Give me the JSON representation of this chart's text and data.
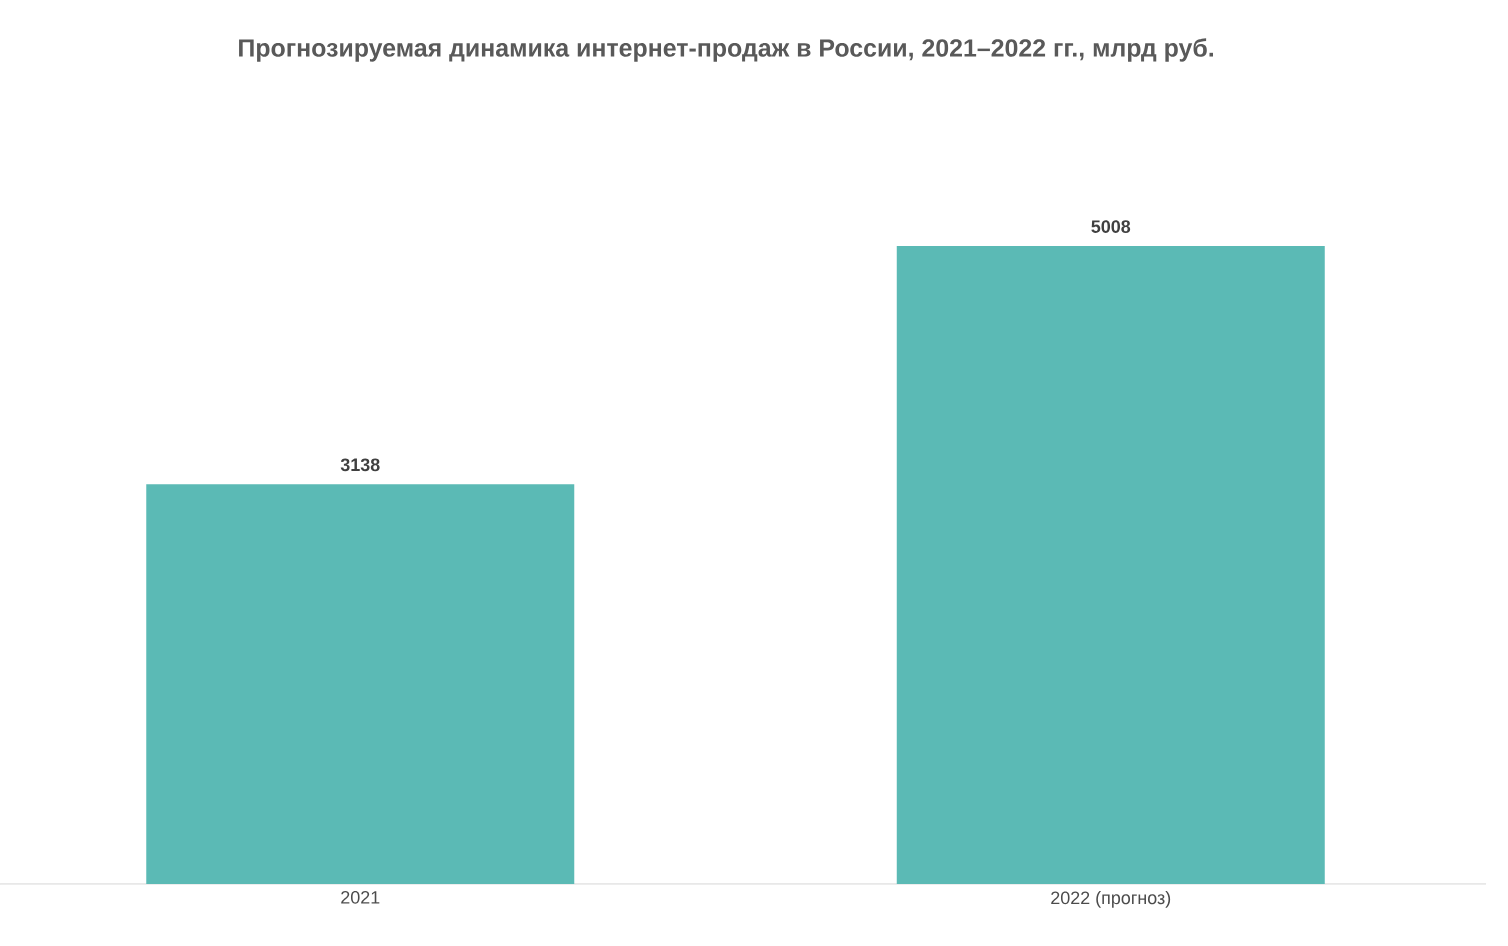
{
  "chart_data": {
    "type": "bar",
    "title": "Прогнозируемая динамика интернет-продаж в России, 2021–2022 гг., млрд руб.",
    "categories": [
      "2021",
      "2022 (прогноз)"
    ],
    "values": [
      3138,
      5008
    ],
    "color": "#5bbab5",
    "data_labels": true
  }
}
